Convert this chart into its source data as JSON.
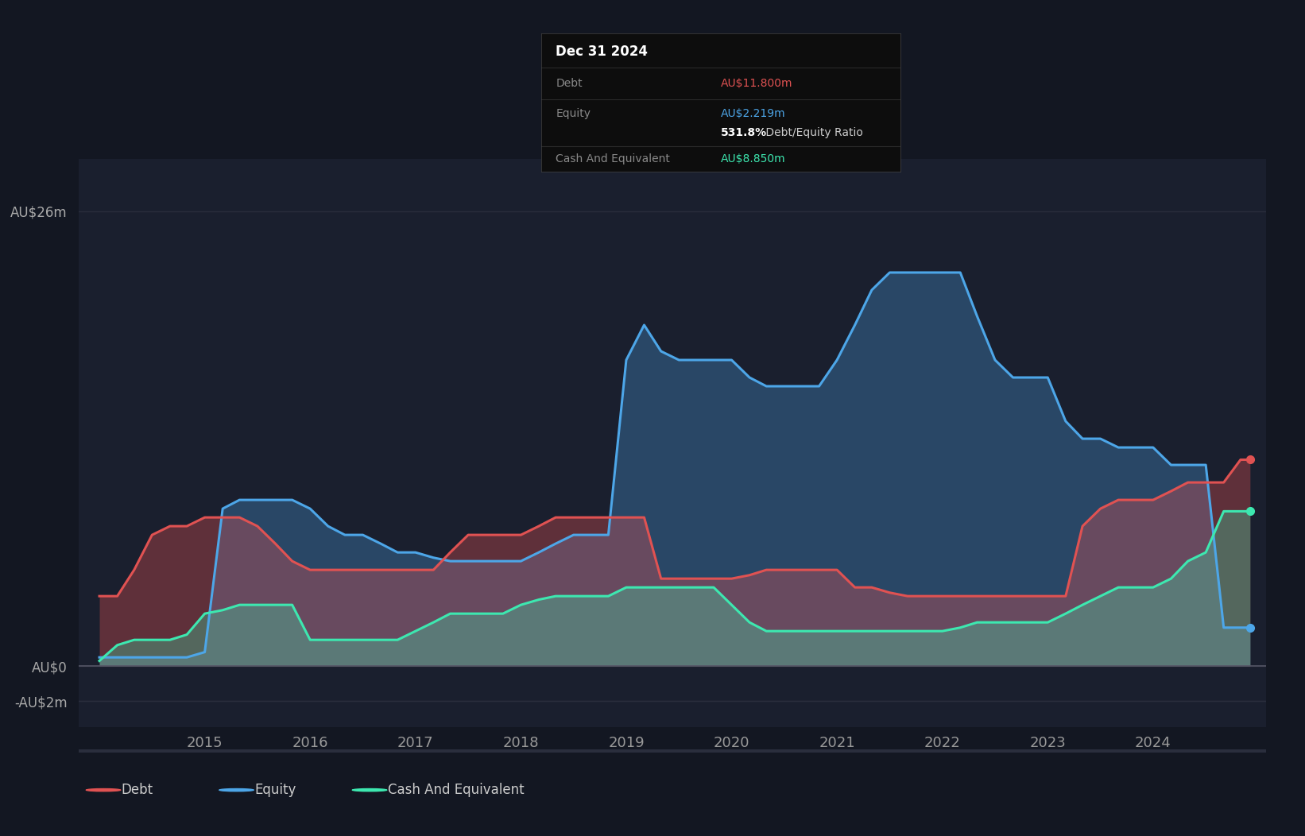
{
  "bg_color": "#131722",
  "plot_bg_color": "#1a1f2e",
  "grid_color": "#2a2e3d",
  "debt_color": "#e05252",
  "equity_color": "#4da6e8",
  "cash_color": "#3de8b0",
  "ylim": [
    -3.5,
    29
  ],
  "yticks": [
    -2,
    0,
    26
  ],
  "xtick_years": [
    2015,
    2016,
    2017,
    2018,
    2019,
    2020,
    2021,
    2022,
    2023,
    2024
  ],
  "tooltip": {
    "date": "Dec 31 2024",
    "debt_label": "Debt",
    "debt_value": "AU$11.800m",
    "equity_label": "Equity",
    "equity_value": "AU$2.219m",
    "ratio_text": "531.8%",
    "ratio_suffix": " Debt/Equity Ratio",
    "cash_label": "Cash And Equivalent",
    "cash_value": "AU$8.850m"
  },
  "legend": [
    "Debt",
    "Equity",
    "Cash And Equivalent"
  ],
  "dates": [
    2014.0,
    2014.17,
    2014.33,
    2014.5,
    2014.67,
    2014.83,
    2015.0,
    2015.17,
    2015.33,
    2015.5,
    2015.67,
    2015.83,
    2016.0,
    2016.17,
    2016.33,
    2016.5,
    2016.67,
    2016.83,
    2017.0,
    2017.17,
    2017.33,
    2017.5,
    2017.67,
    2017.83,
    2018.0,
    2018.17,
    2018.33,
    2018.5,
    2018.67,
    2018.83,
    2019.0,
    2019.17,
    2019.33,
    2019.5,
    2019.67,
    2019.83,
    2020.0,
    2020.17,
    2020.33,
    2020.5,
    2020.67,
    2020.83,
    2021.0,
    2021.17,
    2021.33,
    2021.5,
    2021.67,
    2021.83,
    2022.0,
    2022.17,
    2022.33,
    2022.5,
    2022.67,
    2022.83,
    2023.0,
    2023.17,
    2023.33,
    2023.5,
    2023.67,
    2023.83,
    2024.0,
    2024.17,
    2024.33,
    2024.5,
    2024.67,
    2024.83,
    2024.92
  ],
  "debt": [
    4.0,
    4.0,
    5.5,
    7.5,
    8.0,
    8.0,
    8.5,
    8.5,
    8.5,
    8.0,
    7.0,
    6.0,
    5.5,
    5.5,
    5.5,
    5.5,
    5.5,
    5.5,
    5.5,
    5.5,
    6.5,
    7.5,
    7.5,
    7.5,
    7.5,
    8.0,
    8.5,
    8.5,
    8.5,
    8.5,
    8.5,
    8.5,
    5.0,
    5.0,
    5.0,
    5.0,
    5.0,
    5.2,
    5.5,
    5.5,
    5.5,
    5.5,
    5.5,
    4.5,
    4.5,
    4.2,
    4.0,
    4.0,
    4.0,
    4.0,
    4.0,
    4.0,
    4.0,
    4.0,
    4.0,
    4.0,
    8.0,
    9.0,
    9.5,
    9.5,
    9.5,
    10.0,
    10.5,
    10.5,
    10.5,
    11.8,
    11.8
  ],
  "equity": [
    0.5,
    0.5,
    0.5,
    0.5,
    0.5,
    0.5,
    0.8,
    9.0,
    9.5,
    9.5,
    9.5,
    9.5,
    9.0,
    8.0,
    7.5,
    7.5,
    7.0,
    6.5,
    6.5,
    6.2,
    6.0,
    6.0,
    6.0,
    6.0,
    6.0,
    6.5,
    7.0,
    7.5,
    7.5,
    7.5,
    17.5,
    19.5,
    18.0,
    17.5,
    17.5,
    17.5,
    17.5,
    16.5,
    16.0,
    16.0,
    16.0,
    16.0,
    17.5,
    19.5,
    21.5,
    22.5,
    22.5,
    22.5,
    22.5,
    22.5,
    20.0,
    17.5,
    16.5,
    16.5,
    16.5,
    14.0,
    13.0,
    13.0,
    12.5,
    12.5,
    12.5,
    11.5,
    11.5,
    11.5,
    2.2,
    2.2,
    2.2
  ],
  "cash": [
    0.3,
    1.2,
    1.5,
    1.5,
    1.5,
    1.8,
    3.0,
    3.2,
    3.5,
    3.5,
    3.5,
    3.5,
    1.5,
    1.5,
    1.5,
    1.5,
    1.5,
    1.5,
    2.0,
    2.5,
    3.0,
    3.0,
    3.0,
    3.0,
    3.5,
    3.8,
    4.0,
    4.0,
    4.0,
    4.0,
    4.5,
    4.5,
    4.5,
    4.5,
    4.5,
    4.5,
    3.5,
    2.5,
    2.0,
    2.0,
    2.0,
    2.0,
    2.0,
    2.0,
    2.0,
    2.0,
    2.0,
    2.0,
    2.0,
    2.2,
    2.5,
    2.5,
    2.5,
    2.5,
    2.5,
    3.0,
    3.5,
    4.0,
    4.5,
    4.5,
    4.5,
    5.0,
    6.0,
    6.5,
    8.85,
    8.85,
    8.85
  ]
}
